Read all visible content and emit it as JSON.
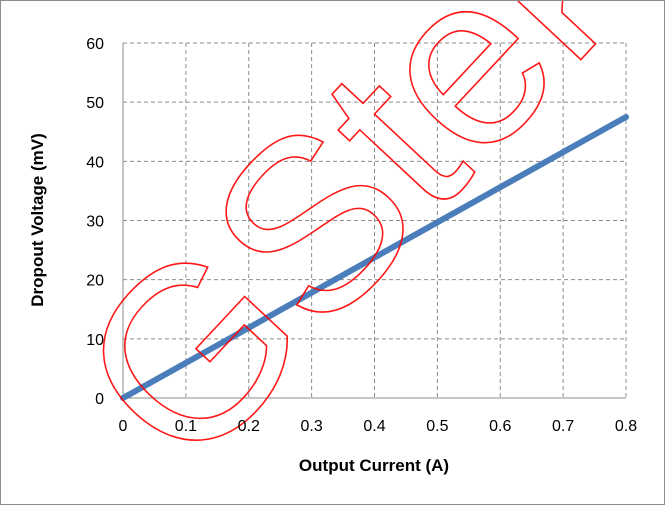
{
  "chart_data": {
    "type": "line",
    "title": "",
    "xlabel": "Output Current (A)",
    "ylabel": "Dropout Voltage (mV)",
    "xlim": [
      0,
      0.8
    ],
    "ylim": [
      0,
      60
    ],
    "x_ticks": [
      "0",
      "0.1",
      "0.2",
      "0.3",
      "0.4",
      "0.5",
      "0.6",
      "0.7",
      "0.8"
    ],
    "y_ticks": [
      "0",
      "10",
      "20",
      "30",
      "40",
      "50",
      "60"
    ],
    "grid": true,
    "grid_style": "dashed",
    "legend": "none",
    "series": [
      {
        "x": [
          0,
          0.8
        ],
        "y": [
          0,
          47.5
        ],
        "color": "#4a7ebb"
      }
    ],
    "watermark": "GStek",
    "watermark_color": "#ff0000"
  }
}
